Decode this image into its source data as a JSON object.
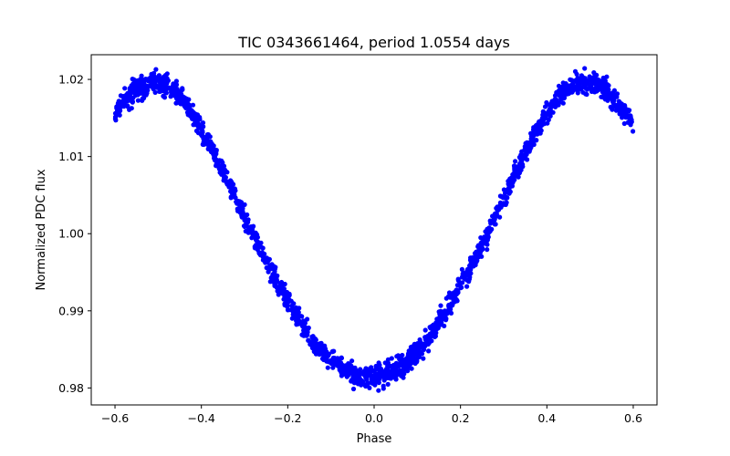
{
  "chart_data": {
    "type": "scatter",
    "title": "TIC 0343661464, period 1.0554 days",
    "xlabel": "Phase",
    "ylabel": "Normalized PDC flux",
    "xlim": [
      -0.655,
      0.655
    ],
    "ylim": [
      0.9778,
      1.0232
    ],
    "xticks": [
      -0.6,
      -0.4,
      -0.2,
      0.0,
      0.2,
      0.4,
      0.6
    ],
    "xtick_labels": [
      "−0.6",
      "−0.4",
      "−0.2",
      "0.0",
      "0.2",
      "0.4",
      "0.6"
    ],
    "yticks": [
      0.98,
      0.99,
      1.0,
      1.01,
      1.02
    ],
    "ytick_labels": [
      "0.98",
      "0.99",
      "1.00",
      "1.01",
      "1.02"
    ],
    "grid": false,
    "legend": "none",
    "marker_color": "#0000ff",
    "series": [
      {
        "x": [
          -0.6,
          -0.58,
          -0.56,
          -0.54,
          -0.52,
          -0.5,
          -0.48,
          -0.46,
          -0.44,
          -0.42,
          -0.4,
          -0.38,
          -0.36,
          -0.34,
          -0.32,
          -0.3,
          -0.28,
          -0.26,
          -0.24,
          -0.22,
          -0.2,
          -0.18,
          -0.16,
          -0.14,
          -0.12,
          -0.1,
          -0.08,
          -0.06,
          -0.04,
          -0.02,
          0.0,
          0.02,
          0.04,
          0.06,
          0.08,
          0.1,
          0.12,
          0.14,
          0.16,
          0.18,
          0.2,
          0.22,
          0.24,
          0.26,
          0.28,
          0.3,
          0.32,
          0.34,
          0.36,
          0.38,
          0.4,
          0.42,
          0.44,
          0.46,
          0.48,
          0.5,
          0.52,
          0.54,
          0.56,
          0.58,
          0.6
        ],
        "y": [
          1.0155,
          1.0172,
          1.0184,
          1.0191,
          1.0195,
          1.0196,
          1.0193,
          1.0185,
          1.0172,
          1.0155,
          1.0136,
          1.0115,
          1.0092,
          1.0069,
          1.0045,
          1.0021,
          0.9998,
          0.9975,
          0.9953,
          0.9932,
          0.9912,
          0.9893,
          0.9876,
          0.986,
          0.9847,
          0.9835,
          0.9827,
          0.982,
          0.9816,
          0.9814,
          0.9813,
          0.9815,
          0.982,
          0.9826,
          0.9835,
          0.9847,
          0.986,
          0.9876,
          0.9893,
          0.9912,
          0.9932,
          0.9953,
          0.9975,
          0.9998,
          1.0021,
          1.0045,
          1.0069,
          1.0092,
          1.0115,
          1.0136,
          1.0155,
          1.0172,
          1.0185,
          1.0192,
          1.0196,
          1.0195,
          1.0191,
          1.0184,
          1.0172,
          1.0157,
          1.0145
        ],
        "scatter": 0.0012
      }
    ]
  }
}
